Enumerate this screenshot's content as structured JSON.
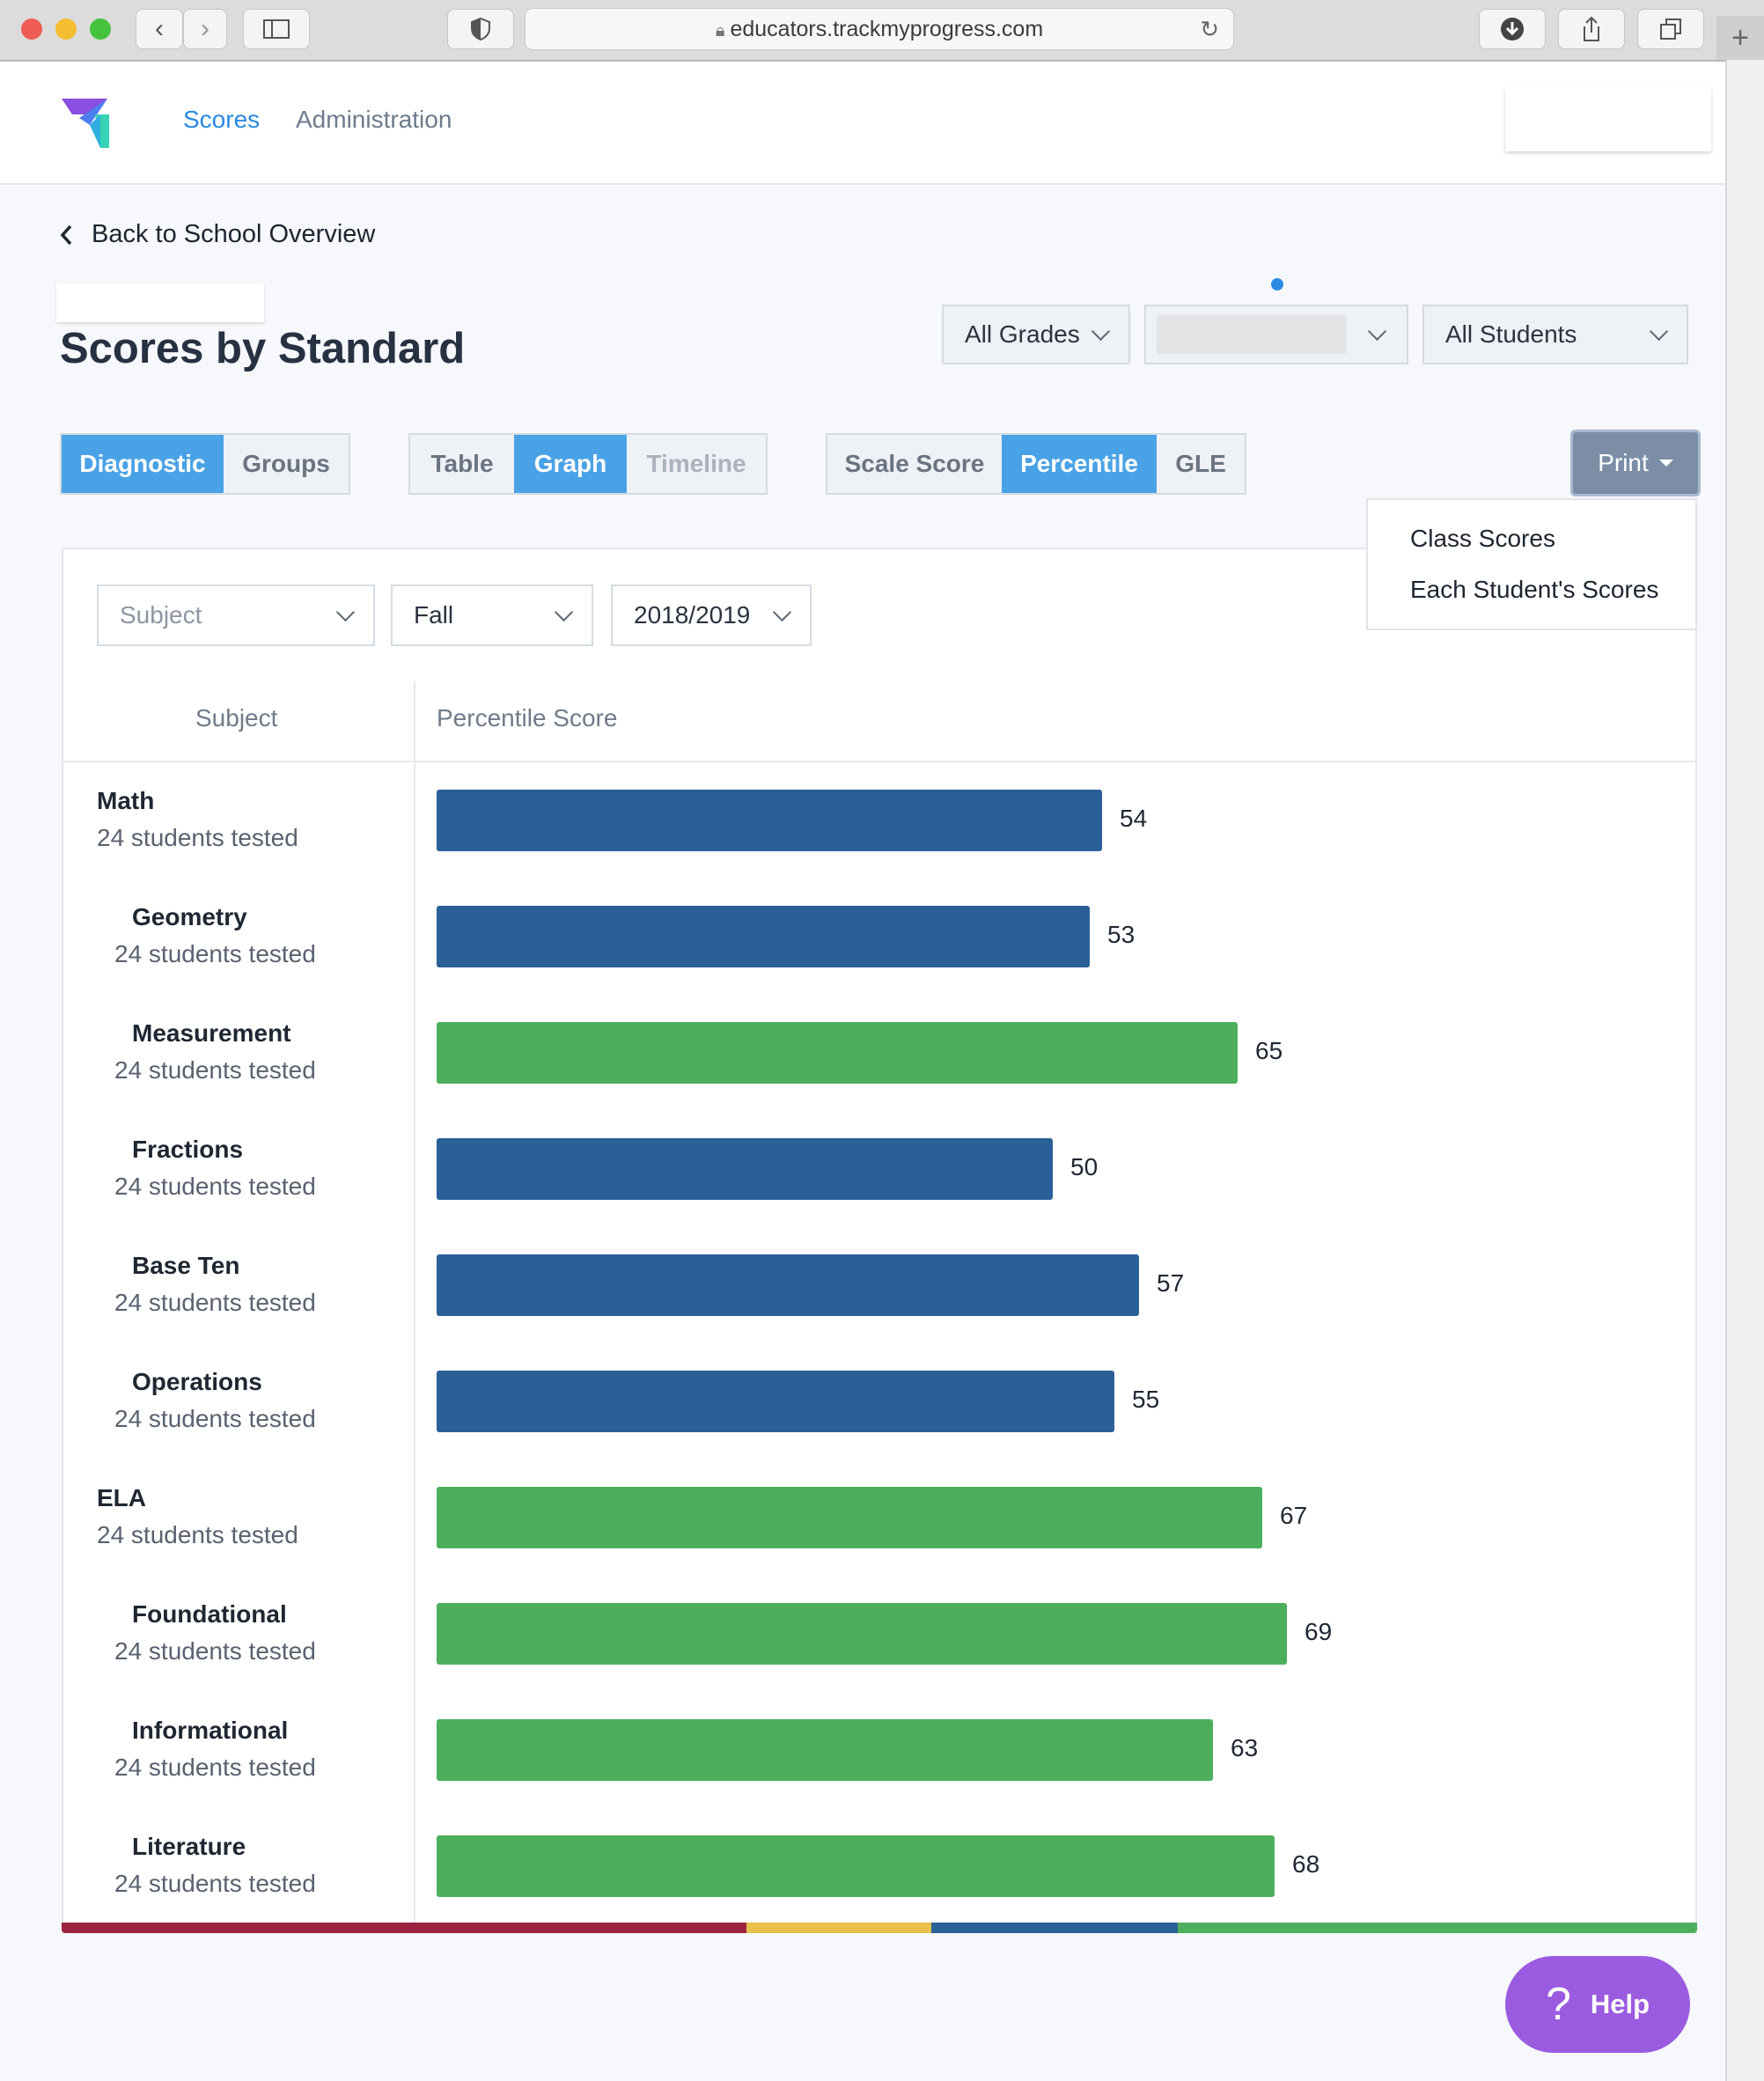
{
  "browser": {
    "url": "educators.trackmyprogress.com"
  },
  "nav": {
    "links": [
      "Scores",
      "Administration"
    ]
  },
  "page": {
    "back_label": "Back to School Overview",
    "title": "Scores by Standard"
  },
  "filters": {
    "grade": "All Grades",
    "students": "All Students"
  },
  "toggles": {
    "source": [
      {
        "label": "Diagnostic",
        "active": true
      },
      {
        "label": "Groups",
        "active": false
      }
    ],
    "view": [
      {
        "label": "Table",
        "active": false
      },
      {
        "label": "Graph",
        "active": true
      },
      {
        "label": "Timeline",
        "active": false
      }
    ],
    "metric": [
      {
        "label": "Scale Score",
        "active": false
      },
      {
        "label": "Percentile",
        "active": true
      },
      {
        "label": "GLE",
        "active": false
      }
    ]
  },
  "print": {
    "label": "Print",
    "menu": [
      "Class Scores",
      "Each Student's Scores"
    ]
  },
  "card_filters": {
    "subject_placeholder": "Subject",
    "season": "Fall",
    "year": "2018/2019"
  },
  "table": {
    "col_subject": "Subject",
    "col_score": "Percentile Score"
  },
  "colors": {
    "blue": "#2a6098",
    "green": "#4daf5d",
    "accent": "#4aa2e6",
    "help": "#9b5be0"
  },
  "chart_data": {
    "type": "bar",
    "orientation": "horizontal",
    "xlabel": "Percentile Score",
    "xlim": [
      0,
      100
    ],
    "categories": [
      "Math",
      "Geometry",
      "Measurement",
      "Fractions",
      "Base Ten",
      "Operations",
      "ELA",
      "Foundational",
      "Informational",
      "Literature"
    ],
    "subtitles": [
      "24 students tested",
      "24 students tested",
      "24 students tested",
      "24 students tested",
      "24 students tested",
      "24 students tested",
      "24 students tested",
      "24 students tested",
      "24 students tested",
      "24 students tested"
    ],
    "indent": [
      false,
      true,
      true,
      true,
      true,
      true,
      false,
      true,
      true,
      true
    ],
    "values": [
      54,
      53,
      65,
      50,
      57,
      55,
      67,
      69,
      63,
      68
    ],
    "bar_colors": [
      "blue",
      "blue",
      "green",
      "blue",
      "blue",
      "blue",
      "green",
      "green",
      "green",
      "green"
    ]
  },
  "help": {
    "label": "Help",
    "icon": "?"
  }
}
